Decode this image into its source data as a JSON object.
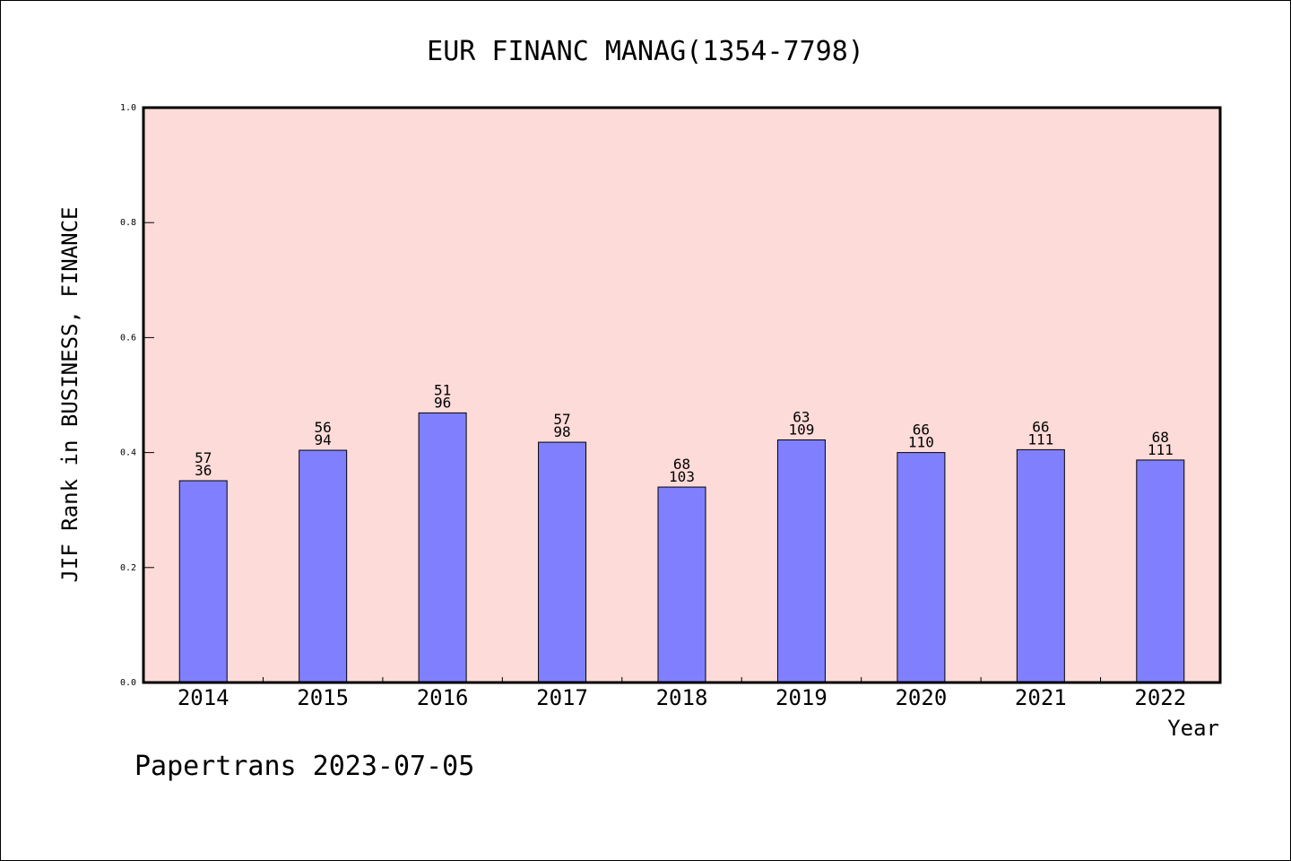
{
  "chart_data": {
    "type": "bar",
    "title": "EUR FINANC MANAG(1354-7798)",
    "xlabel": "Year",
    "ylabel": "JIF Rank in BUSINESS, FINANCE",
    "ylim": [
      0,
      1.0
    ],
    "yticks": [
      "0.0",
      "0.2",
      "0.4",
      "0.6",
      "0.8",
      "1.0"
    ],
    "grid": false,
    "categories": [
      "2014",
      "2015",
      "2016",
      "2017",
      "2018",
      "2019",
      "2020",
      "2021",
      "2022"
    ],
    "values": [
      0.351,
      0.404,
      0.469,
      0.418,
      0.34,
      0.422,
      0.4,
      0.405,
      0.387
    ],
    "labels_top": [
      "57",
      "56",
      "51",
      "57",
      "68",
      "63",
      "66",
      "66",
      "68"
    ],
    "labels_bottom": [
      "36",
      "94",
      "96",
      "98",
      "103",
      "109",
      "110",
      "111",
      "111"
    ],
    "colors": {
      "bar": "#8080ff",
      "plot_bg": "#fddbd8",
      "axis": "#000000"
    }
  },
  "footer": "Papertrans 2023-07-05"
}
